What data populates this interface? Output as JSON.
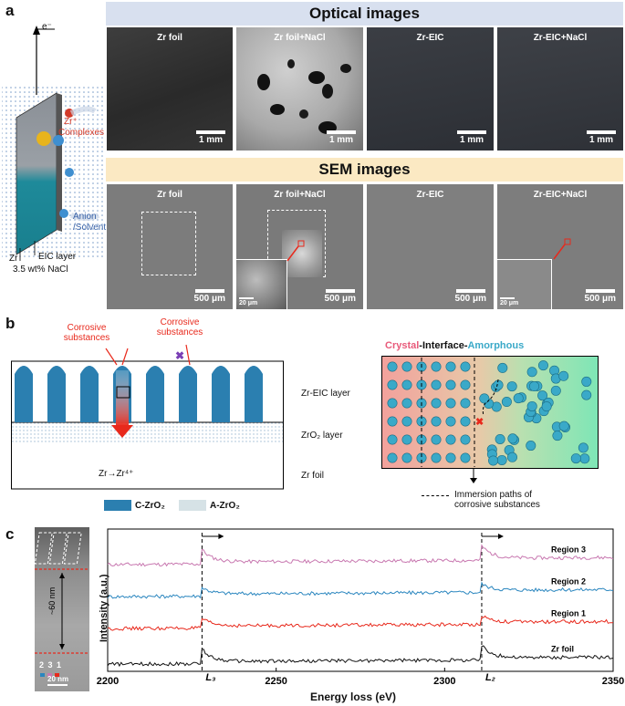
{
  "panel_labels": {
    "a": "a",
    "b": "b",
    "c": "c"
  },
  "panel_a": {
    "optical_title": "Optical images",
    "sem_title": "SEM images",
    "optical": [
      {
        "title": "Zr foil",
        "scale": "1 mm"
      },
      {
        "title": "Zr foil+NaCl",
        "scale": "1 mm"
      },
      {
        "title": "Zr-EIC",
        "scale": "1 mm"
      },
      {
        "title": "Zr-EIC+NaCl",
        "scale": "1 mm"
      }
    ],
    "sem": [
      {
        "title": "Zr foil",
        "scale": "500 μm"
      },
      {
        "title": "Zr foil+NaCl",
        "scale": "500 μm",
        "inset_scale": "20 μm"
      },
      {
        "title": "Zr-EIC",
        "scale": "500 μm"
      },
      {
        "title": "Zr-EIC+NaCl",
        "scale": "500 μm",
        "inset_scale": "20 μm"
      }
    ],
    "schematic": {
      "electron": "e⁻",
      "zr_label": "Zr⁺",
      "complexes": "Complexes",
      "anion": "Anion",
      "solvent": "/Solvent",
      "zr": "Zr",
      "eic": "EIC layer",
      "nacl": "3.5 wt% NaCl"
    }
  },
  "panel_b": {
    "corrosive_1": "Corrosive substances",
    "corrosive_2": "Corrosive substances",
    "zr_eic_layer": "Zr-EIC layer",
    "zro2_layer": "ZrO₂ layer",
    "zr_foil": "Zr foil",
    "reaction": "Zr→Zr⁴⁺",
    "legend_c": "C-ZrO₂",
    "legend_a": "A-ZrO₂",
    "title_crystal": "Crystal",
    "title_interface": "-Interface-",
    "title_amorphous": "Amorphous",
    "paths_label_1": "Immersion paths of",
    "paths_label_2": "corrosive substances"
  },
  "panel_c": {
    "tem_numbers": "2 3 1",
    "tem_height": "~60 nm",
    "tem_scale": "20 nm",
    "xlabel": "Energy loss (eV)",
    "ylabel": "Intensity (a.u.)",
    "xticks": [
      "2200",
      "2250",
      "2300",
      "2350"
    ],
    "edge_l3": "L₃",
    "edge_l2": "L₂"
  },
  "colors": {
    "optical_band": "#d8e0ef",
    "sem_band": "#fbe9c3",
    "c_zro2": "#2b7fb0",
    "a_zro2": "#d6e2e6",
    "red": "#e8291c",
    "purple": "#7a3fb5",
    "crystal": "#e85a7a",
    "amorphous": "#3aa9c8"
  },
  "chart_data": {
    "type": "line",
    "xlabel": "Energy loss (eV)",
    "ylabel": "Intensity (a.u.)",
    "xlim": [
      2200,
      2350
    ],
    "edges": [
      {
        "label": "L₃",
        "x": 2228
      },
      {
        "label": "L₂",
        "x": 2311
      }
    ],
    "series": [
      {
        "name": "Region 3",
        "color": "#c878b0",
        "offset": 3.0,
        "edge_height": 0.35
      },
      {
        "name": "Region 2",
        "color": "#2a86bf",
        "offset": 2.1,
        "edge_height": 0.18
      },
      {
        "name": "Region 1",
        "color": "#e8291c",
        "offset": 1.2,
        "edge_height": 0.2
      },
      {
        "name": "Zr foil",
        "color": "#111111",
        "offset": 0.2,
        "edge_height": 0.35
      }
    ]
  }
}
